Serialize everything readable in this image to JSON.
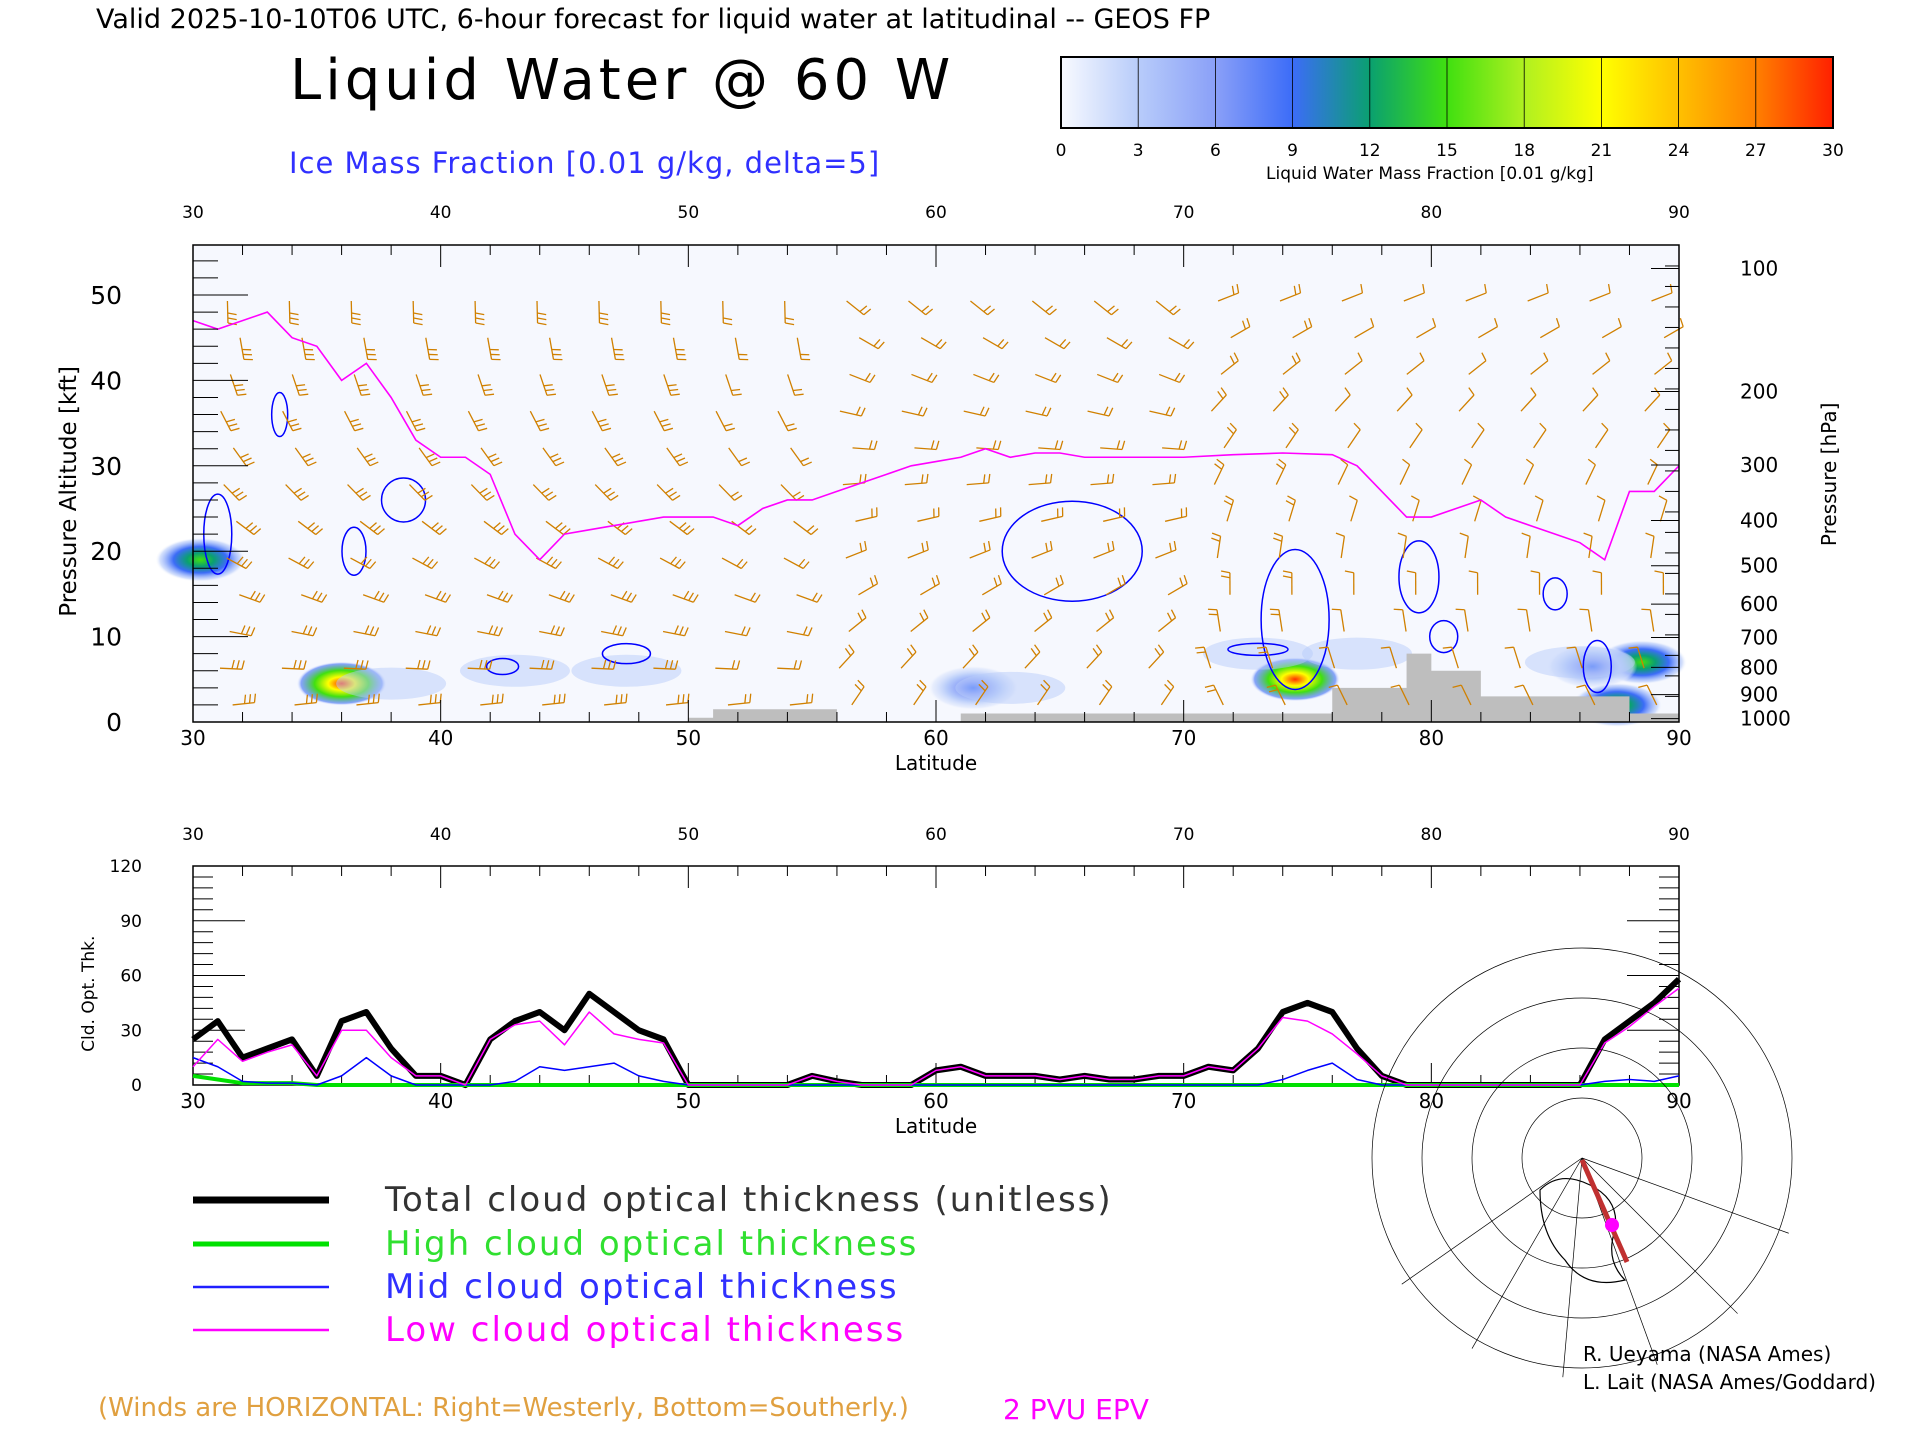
{
  "header": {
    "valid_line": "Valid 2025-10-10T06 UTC, 6-hour forecast for liquid water at latitudinal -- GEOS FP",
    "title": "Liquid Water @ 60 W",
    "ice_label": "Ice Mass Fraction [0.01 g/kg, delta=5]"
  },
  "colorbar": {
    "ticks": [
      "0",
      "3",
      "6",
      "9",
      "12",
      "15",
      "18",
      "21",
      "24",
      "27",
      "30"
    ],
    "caption": "Liquid Water Mass Fraction [0.01 g/kg]",
    "colors": [
      "#f8faff",
      "#b8ccfa",
      "#8aa0f8",
      "#3c6cf8",
      "#0aa070",
      "#40e010",
      "#b0f020",
      "#ffff00",
      "#ffc000",
      "#ff8000",
      "#ff2000"
    ]
  },
  "chart_data": [
    {
      "type": "heatmap",
      "title": "Liquid Water @ 60 W",
      "xlabel": "Latitude",
      "ylabel": "Pressure Altitude [kft]",
      "ylabel_right": "Pressure [hPa]",
      "xlim": [
        30,
        90
      ],
      "ylim": [
        0,
        56
      ],
      "x_ticks": [
        "30",
        "40",
        "50",
        "60",
        "70",
        "80",
        "90"
      ],
      "y_ticks": [
        "0",
        "10",
        "20",
        "30",
        "40",
        "50"
      ],
      "pressure_ticks": [
        {
          "label": "100",
          "kft": 53.1
        },
        {
          "label": "200",
          "kft": 38.7
        },
        {
          "label": "300",
          "kft": 30.1
        },
        {
          "label": "400",
          "kft": 23.6
        },
        {
          "label": "500",
          "kft": 18.3
        },
        {
          "label": "600",
          "kft": 13.8
        },
        {
          "label": "700",
          "kft": 9.9
        },
        {
          "label": "800",
          "kft": 6.4
        },
        {
          "label": "900",
          "kft": 3.2
        },
        {
          "label": "1000",
          "kft": 0.4
        }
      ],
      "epv_2pvu": {
        "lat": [
          30,
          31,
          33,
          34,
          35,
          36,
          37,
          38,
          39,
          40,
          41,
          42,
          43,
          44,
          45,
          46,
          47,
          48,
          49,
          50,
          51,
          52,
          53,
          54,
          55,
          56,
          57,
          58,
          59,
          60,
          61,
          62,
          63,
          64,
          65,
          66,
          68,
          70,
          72,
          74,
          76,
          77,
          78,
          79,
          80,
          81,
          82,
          83,
          84,
          85,
          86,
          87,
          88,
          89,
          90
        ],
        "kft": [
          47,
          46,
          48,
          45,
          44,
          40,
          42,
          38,
          33,
          31,
          31,
          29,
          22,
          19,
          22,
          22.5,
          23,
          23.5,
          24,
          24,
          24,
          23,
          25,
          26,
          26,
          27,
          28,
          29,
          30,
          30.5,
          31,
          32,
          31,
          31.5,
          31.5,
          31,
          31,
          31,
          31.3,
          31.5,
          31.3,
          30,
          27,
          24,
          24,
          25,
          26,
          24,
          23,
          22,
          21,
          19,
          27,
          27,
          30
        ]
      },
      "terrain": {
        "lat": [
          50,
          51,
          56,
          61,
          75,
          76,
          79,
          80,
          82,
          88,
          90
        ],
        "kft": [
          0.5,
          1.5,
          0,
          1,
          1,
          4,
          8,
          6,
          3,
          1,
          1
        ]
      },
      "liquid_blobs": [
        {
          "lat": 36,
          "kft": 4.5,
          "value": 25
        },
        {
          "lat": 74.5,
          "kft": 5,
          "value": 22
        },
        {
          "lat": 88.5,
          "kft": 7,
          "value": 20
        },
        {
          "lat": 61.5,
          "kft": 4,
          "value": 12
        },
        {
          "lat": 30.3,
          "kft": 19,
          "value": 16
        },
        {
          "lat": 86.5,
          "kft": 6.5,
          "value": 12
        },
        {
          "lat": 87.5,
          "kft": 2,
          "value": 14
        }
      ],
      "annotation": "2 PVU EPV"
    },
    {
      "type": "line",
      "xlabel": "Latitude",
      "ylabel": "Cld. Opt. Thk.",
      "xlim": [
        30,
        90
      ],
      "ylim": [
        0,
        120
      ],
      "x_ticks": [
        "30",
        "40",
        "50",
        "60",
        "70",
        "80",
        "90"
      ],
      "y_ticks": [
        "0",
        "30",
        "60",
        "90",
        "120"
      ],
      "x": [
        30,
        31,
        32,
        33,
        34,
        35,
        36,
        37,
        38,
        39,
        40,
        41,
        42,
        43,
        44,
        45,
        46,
        47,
        48,
        49,
        50,
        51,
        52,
        53,
        54,
        55,
        56,
        57,
        58,
        59,
        60,
        61,
        62,
        63,
        64,
        65,
        66,
        67,
        68,
        69,
        70,
        71,
        72,
        73,
        74,
        75,
        76,
        77,
        78,
        79,
        80,
        81,
        82,
        83,
        84,
        85,
        86,
        87,
        88,
        89,
        90
      ],
      "series": [
        {
          "name": "Total cloud optical thickness (unitless)",
          "color": "#000000",
          "values": [
            25,
            35,
            15,
            20,
            25,
            5,
            35,
            40,
            20,
            5,
            5,
            0,
            25,
            35,
            40,
            30,
            50,
            40,
            30,
            25,
            0,
            0,
            0,
            0,
            0,
            5,
            2,
            0,
            0,
            0,
            8,
            10,
            5,
            5,
            5,
            3,
            5,
            3,
            3,
            5,
            5,
            10,
            8,
            20,
            40,
            45,
            40,
            20,
            5,
            0,
            0,
            0,
            0,
            0,
            0,
            0,
            0,
            25,
            35,
            45,
            58
          ]
        },
        {
          "name": "High cloud optical thickness",
          "color": "#00e000",
          "values": [
            5,
            3,
            1,
            1,
            1,
            0,
            0,
            0,
            0,
            0,
            0,
            0,
            0,
            0,
            0,
            0,
            0,
            0,
            0,
            0,
            0,
            0,
            0,
            0,
            0,
            0,
            0,
            0,
            0,
            0,
            0,
            0,
            0,
            0,
            0,
            0,
            0,
            0,
            0,
            0,
            0,
            0,
            0,
            0,
            0,
            0,
            0,
            0,
            0,
            0,
            0,
            0,
            0,
            0,
            0,
            0,
            0,
            0,
            0,
            0,
            0
          ]
        },
        {
          "name": "Mid cloud optical thickness",
          "color": "#0000ff",
          "values": [
            15,
            10,
            2,
            1,
            1,
            0,
            5,
            15,
            5,
            0,
            0,
            0,
            0,
            2,
            10,
            8,
            10,
            12,
            5,
            2,
            0,
            0,
            0,
            0,
            0,
            0,
            0,
            0,
            0,
            0,
            0,
            0,
            0,
            0,
            0,
            0,
            0,
            0,
            0,
            0,
            0,
            0,
            0,
            0,
            3,
            8,
            12,
            3,
            0,
            0,
            0,
            0,
            0,
            0,
            0,
            0,
            0,
            2,
            3,
            2,
            5
          ]
        },
        {
          "name": "Low cloud optical thickness",
          "color": "#ff00ff",
          "values": [
            10,
            25,
            13,
            18,
            22,
            5,
            30,
            30,
            15,
            5,
            5,
            0,
            25,
            33,
            35,
            22,
            40,
            28,
            25,
            23,
            0,
            0,
            0,
            0,
            0,
            5,
            2,
            0,
            0,
            0,
            8,
            10,
            5,
            5,
            5,
            3,
            5,
            3,
            3,
            5,
            5,
            10,
            8,
            20,
            37,
            35,
            28,
            17,
            5,
            0,
            0,
            0,
            0,
            0,
            0,
            0,
            0,
            23,
            32,
            43,
            53
          ]
        }
      ]
    }
  ],
  "footer": {
    "winds_note": "(Winds are HORIZONTAL: Right=Westerly, Bottom=Southerly.)",
    "epv_label": "2 PVU EPV",
    "credit1": "R. Ueyama (NASA Ames)",
    "credit2": "L. Lait (NASA Ames/Goddard)"
  },
  "colors": {
    "winds": "#d08000",
    "epv": "#ff00ff",
    "ice": "#0000ff",
    "terrain": "#bebebe"
  }
}
